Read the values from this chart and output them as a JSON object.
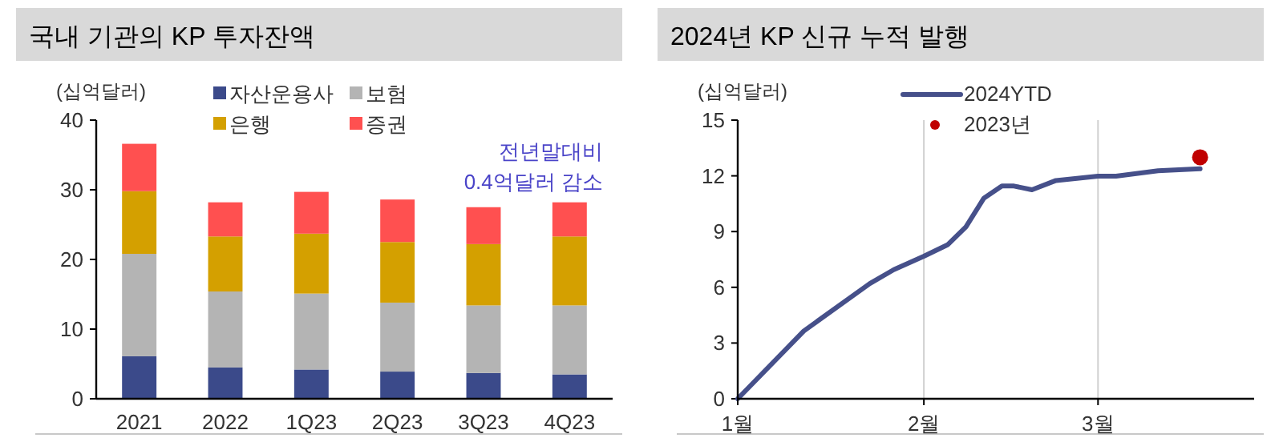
{
  "chart_data": [
    {
      "type": "bar",
      "title": "국내 기관의 KP 투자잔액",
      "ylabel": "(십억달러)",
      "stacked": true,
      "legend": "top",
      "categories": [
        "2021",
        "2022",
        "1Q23",
        "2Q23",
        "3Q23",
        "4Q23"
      ],
      "ylim": [
        0,
        40
      ],
      "yticks": [
        0,
        10,
        20,
        30,
        40
      ],
      "annotations": [
        "전년말대비\n0.4억달러 감소"
      ],
      "series": [
        {
          "name": "자산운용사",
          "color": "#3b4a8a",
          "values": [
            6.1,
            4.5,
            4.2,
            3.9,
            3.7,
            3.5
          ]
        },
        {
          "name": "보험",
          "color": "#b4b4b4",
          "values": [
            14.7,
            10.9,
            10.9,
            9.9,
            9.7,
            9.9
          ]
        },
        {
          "name": "은행",
          "color": "#d4a000",
          "values": [
            9.0,
            7.9,
            8.6,
            8.7,
            8.8,
            9.9
          ]
        },
        {
          "name": "증권",
          "color": "#ff5050",
          "values": [
            6.8,
            4.9,
            6.0,
            6.1,
            5.3,
            4.9
          ]
        }
      ]
    },
    {
      "type": "line",
      "title": "2024년 KP 신규 누적 발행",
      "ylabel": "(십억달러)",
      "legend": "top",
      "grid": "x",
      "xlim": [
        "2024-01-01",
        "2024-03-27"
      ],
      "xticks": [
        {
          "value": "2024-01-01",
          "label": "1월"
        },
        {
          "value": "2024-02-01",
          "label": "2월"
        },
        {
          "value": "2024-03-01",
          "label": "3월"
        }
      ],
      "ylim": [
        0,
        15
      ],
      "yticks": [
        0,
        3,
        6,
        9,
        12,
        15
      ],
      "series": [
        {
          "name": "2024YTD",
          "type": "line",
          "color": "#46508a",
          "x": [
            "2024-01-01",
            "2024-01-12",
            "2024-01-23",
            "2024-01-27",
            "2024-02-01",
            "2024-02-05",
            "2024-02-08",
            "2024-02-11",
            "2024-02-14",
            "2024-02-16",
            "2024-02-19",
            "2024-02-23",
            "2024-03-01",
            "2024-03-04",
            "2024-03-11",
            "2024-03-18"
          ],
          "values": [
            0,
            3.65,
            6.2,
            6.95,
            7.67,
            8.3,
            9.25,
            10.8,
            11.45,
            11.45,
            11.25,
            11.75,
            11.98,
            11.98,
            12.27,
            12.38
          ]
        },
        {
          "name": "2023년",
          "type": "scatter",
          "color": "#c00000",
          "x": [
            "2024-03-18"
          ],
          "values": [
            13.0
          ]
        }
      ]
    }
  ]
}
